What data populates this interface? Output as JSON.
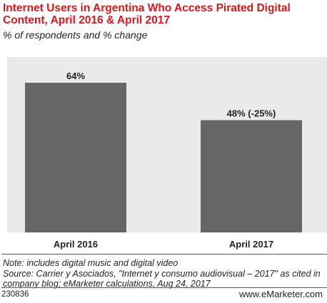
{
  "title": "Internet Users in Argentina Who Access Pirated Digital Content, April 2016 & April 2017",
  "subtitle": "% of respondents and % change",
  "chart_data": {
    "type": "bar",
    "categories": [
      "April 2016",
      "April 2017"
    ],
    "values": [
      64,
      48
    ],
    "data_labels": [
      "64%",
      "48% (-25%)"
    ],
    "unit": "%",
    "ylim": [
      0,
      75
    ],
    "grid": false,
    "bar_color": "#666666",
    "background_color": "#eaeaea"
  },
  "notes": {
    "note": "Note: includes digital music and digital video",
    "source": "Source: Carrier y Asociados, \"Internet y consumo audiovisual – 2017\" as cited in company blog; eMarketer calculations, Aug 24, 2017"
  },
  "footer": {
    "chart_id": "230836",
    "brand": "www.eMarketer.com"
  },
  "colors": {
    "title": "#d7191c",
    "bar": "#666666",
    "plot_background": "#eaeaea"
  }
}
